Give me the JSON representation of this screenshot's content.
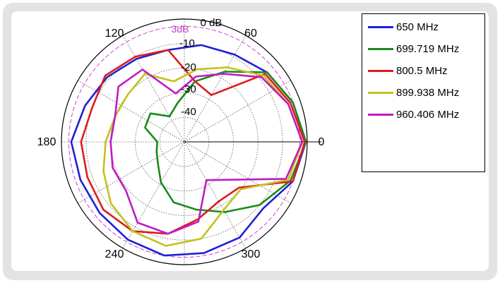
{
  "chart_data": {
    "type": "polar-line",
    "radial_ticks": [
      "0 dB",
      "-10",
      "-20",
      "-30",
      "-40"
    ],
    "radial_ref_label": "3dB",
    "angle_labels": [
      "0",
      "60",
      "120",
      "180",
      "240",
      "300"
    ],
    "r_range_db": [
      -50,
      0
    ],
    "grid": true,
    "legend_position": "right",
    "series": [
      {
        "name": "650 MHz",
        "color": "#1f1fd6",
        "angle_deg": [
          0,
          20,
          40,
          60,
          80,
          100,
          120,
          140,
          160,
          180,
          200,
          220,
          240,
          260,
          280,
          300,
          320,
          340,
          360
        ],
        "gain_db": [
          -0.5,
          -3,
          -6,
          -9,
          -10,
          -12,
          -11,
          -9,
          -7,
          -4,
          -5,
          -5,
          -4,
          -3,
          -4,
          -5,
          -8,
          -3,
          -0.5
        ]
      },
      {
        "name": "699.719 MHz",
        "color": "#1b8a1b",
        "angle_deg": [
          0,
          20,
          40,
          60,
          80,
          100,
          120,
          140,
          160,
          180,
          200,
          220,
          240,
          260,
          280,
          300,
          320,
          340,
          360
        ],
        "gain_db": [
          -0.5,
          -3,
          -6,
          -17,
          -25,
          -34,
          -38,
          -32,
          -33,
          -39,
          -38,
          -36,
          -31,
          -25,
          -22,
          -17,
          -10,
          -4,
          -0.5
        ]
      },
      {
        "name": "800.5 MHz",
        "color": "#e01b1b",
        "angle_deg": [
          0,
          20,
          40,
          60,
          80,
          100,
          120,
          140,
          160,
          180,
          200,
          220,
          240,
          260,
          280,
          300,
          320,
          340,
          360
        ],
        "gain_db": [
          -1,
          -4,
          -7,
          -28,
          -25,
          -12,
          -10,
          -8,
          -10,
          -8,
          -8,
          -7,
          -8,
          -12,
          -18,
          -22,
          -21,
          -3,
          -1
        ]
      },
      {
        "name": "899.938 MHz",
        "color": "#c4c21a",
        "angle_deg": [
          0,
          20,
          40,
          60,
          80,
          100,
          120,
          140,
          160,
          180,
          200,
          220,
          240,
          260,
          280,
          300,
          320,
          340,
          360
        ],
        "gain_db": [
          -2,
          -5,
          -8,
          -15,
          -20,
          -25,
          -18,
          -20,
          -20,
          -18,
          -15,
          -11,
          -8,
          -7,
          -10,
          -18,
          -20,
          -5,
          -2
        ]
      },
      {
        "name": "960.406 MHz",
        "color": "#c01bc4",
        "angle_deg": [
          0,
          20,
          40,
          60,
          80,
          100,
          120,
          140,
          160,
          180,
          200,
          220,
          240,
          260,
          280,
          300,
          320,
          340,
          360
        ],
        "gain_db": [
          -2,
          -5,
          -9,
          -18,
          -23,
          -30,
          -16,
          -15,
          -20,
          -20,
          -19,
          -19,
          -12,
          -12,
          -17,
          -32,
          -26,
          -6,
          -2
        ]
      }
    ]
  }
}
